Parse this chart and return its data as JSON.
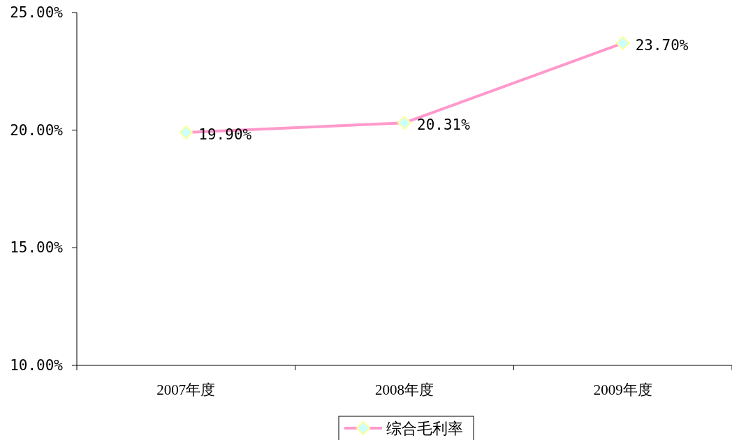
{
  "chart_data": {
    "type": "line",
    "categories": [
      "2007年度",
      "2008年度",
      "2009年度"
    ],
    "series": [
      {
        "name": "综合毛利率",
        "color": "#ff99cc",
        "values": [
          19.9,
          20.31,
          23.7
        ],
        "value_labels": [
          "19.90%",
          "20.31%",
          "23.70%"
        ]
      }
    ],
    "ylim": [
      10,
      25
    ],
    "yticks": [
      {
        "value": 10,
        "label": "10.00%"
      },
      {
        "value": 15,
        "label": "15.00%"
      },
      {
        "value": 20,
        "label": "20.00%"
      },
      {
        "value": 25,
        "label": "25.00%"
      }
    ],
    "marker": "diamond",
    "legend": "bottom",
    "grid": false
  }
}
